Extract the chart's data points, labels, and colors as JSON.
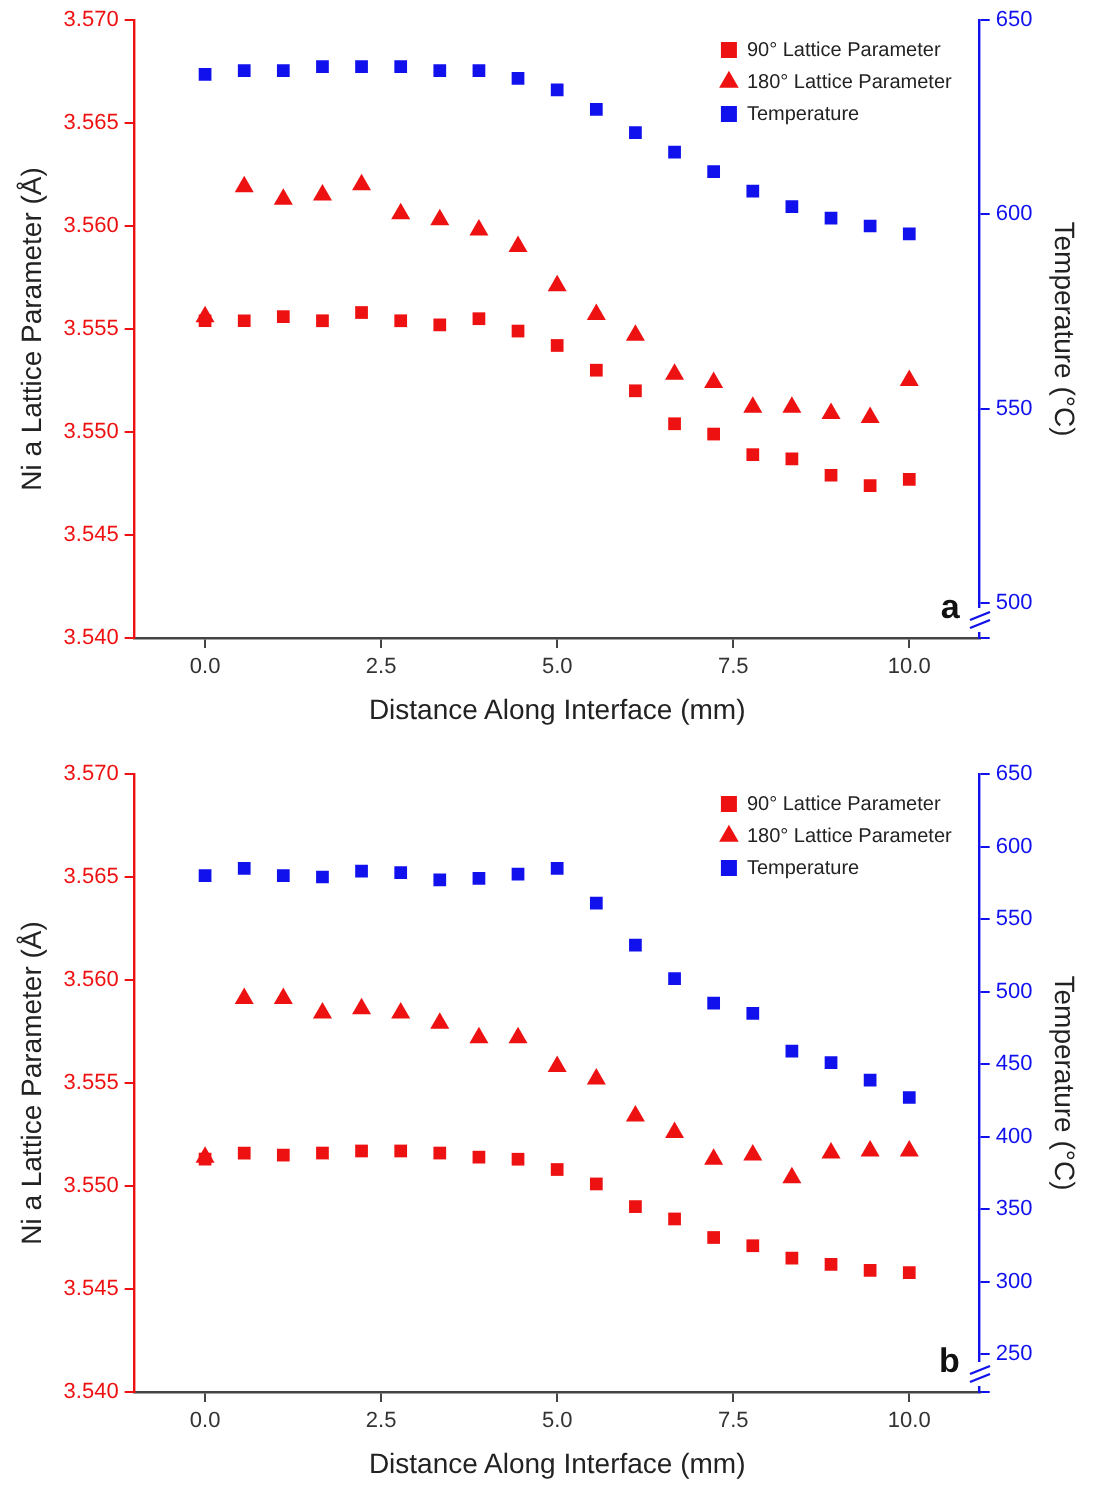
{
  "chart_data": [
    {
      "type": "scatter",
      "xlabel": "Distance Along Interface (mm)",
      "ylabel": "Ni a Lattice Parameter (Å)",
      "y2label": "Temperature (°C)",
      "annotations": [
        "a"
      ],
      "x": [
        0,
        0.556,
        1.111,
        1.667,
        2.222,
        2.778,
        3.333,
        3.889,
        4.444,
        5,
        5.556,
        6.111,
        6.667,
        7.222,
        7.778,
        8.333,
        8.889,
        9.444,
        10
      ],
      "xlim": [
        -1,
        11
      ],
      "xticks": [
        {
          "value": 0,
          "label": "0.0"
        },
        {
          "value": 2.5,
          "label": "2.5"
        },
        {
          "value": 5,
          "label": "5.0"
        },
        {
          "value": 7.5,
          "label": "7.5"
        },
        {
          "value": 10,
          "label": "10.0"
        }
      ],
      "ylim": [
        3.54,
        3.57
      ],
      "yticks": [
        {
          "value": 3.54,
          "label": "3.540"
        },
        {
          "value": 3.545,
          "label": "3.545"
        },
        {
          "value": 3.55,
          "label": "3.550"
        },
        {
          "value": 3.555,
          "label": "3.555"
        },
        {
          "value": 3.56,
          "label": "3.560"
        },
        {
          "value": 3.565,
          "label": "3.565"
        },
        {
          "value": 3.57,
          "label": "3.570"
        }
      ],
      "y2lim": [
        491,
        650
      ],
      "y2ticks": [
        {
          "value": 491,
          "label": null
        },
        500,
        550,
        600,
        650
      ],
      "grid": false,
      "legend": "top right",
      "series": [
        {
          "name": "90° Lattice Parameter",
          "color": "#ee1111",
          "marker": "square",
          "values": [
            3.5554,
            3.5554,
            3.5556,
            3.5554,
            3.5558,
            3.5554,
            3.5552,
            3.5555,
            3.5549,
            3.5542,
            3.553,
            3.552,
            3.5504,
            3.5499,
            3.5489,
            3.5487,
            3.5479,
            3.5474,
            3.5477
          ]
        },
        {
          "name": "180° Lattice Parameter",
          "color": "#ee1111",
          "marker": "triangle",
          "values": [
            3.5556,
            3.5619,
            3.5613,
            3.5615,
            3.562,
            3.5606,
            3.5603,
            3.5598,
            3.559,
            3.5571,
            3.5557,
            3.5547,
            3.5528,
            3.5524,
            3.5512,
            3.5512,
            3.5509,
            3.5507,
            3.5525
          ]
        },
        {
          "name": "Temperature",
          "color": "#1111ee",
          "marker": "square",
          "axis": "y2",
          "values": [
            636,
            637,
            637,
            638,
            638,
            638,
            637,
            637,
            635,
            632,
            627,
            621,
            616,
            611,
            606,
            602,
            599,
            597,
            595
          ]
        }
      ]
    },
    {
      "type": "scatter",
      "xlabel": "Distance Along Interface (mm)",
      "ylabel": "Ni a Lattice Parameter (Å)",
      "y2label": "Temperature (°C)",
      "annotations": [
        "b"
      ],
      "x": [
        0,
        0.556,
        1.111,
        1.667,
        2.222,
        2.778,
        3.333,
        3.889,
        4.444,
        5,
        5.556,
        6.111,
        6.667,
        7.222,
        7.778,
        8.333,
        8.889,
        9.444,
        10
      ],
      "xlim": [
        -1,
        11
      ],
      "xticks": [
        {
          "value": 0,
          "label": "0.0"
        },
        {
          "value": 2.5,
          "label": "2.5"
        },
        {
          "value": 5,
          "label": "5.0"
        },
        {
          "value": 7.5,
          "label": "7.5"
        },
        {
          "value": 10,
          "label": "10.0"
        }
      ],
      "ylim": [
        3.54,
        3.57
      ],
      "yticks": [
        {
          "value": 3.54,
          "label": "3.540"
        },
        {
          "value": 3.545,
          "label": "3.545"
        },
        {
          "value": 3.55,
          "label": "3.550"
        },
        {
          "value": 3.555,
          "label": "3.555"
        },
        {
          "value": 3.56,
          "label": "3.560"
        },
        {
          "value": 3.565,
          "label": "3.565"
        },
        {
          "value": 3.57,
          "label": "3.570"
        }
      ],
      "y2lim": [
        224,
        650
      ],
      "y2ticks": [
        {
          "value": 224,
          "label": null
        },
        250,
        300,
        350,
        400,
        450,
        500,
        550,
        600,
        650
      ],
      "grid": false,
      "legend": "top right",
      "series": [
        {
          "name": "90° Lattice Parameter",
          "color": "#ee1111",
          "marker": "square",
          "values": [
            3.5513,
            3.5516,
            3.5515,
            3.5516,
            3.5517,
            3.5517,
            3.5516,
            3.5514,
            3.5513,
            3.5508,
            3.5501,
            3.549,
            3.5484,
            3.5475,
            3.5471,
            3.5465,
            3.5462,
            3.5459,
            3.5458
          ]
        },
        {
          "name": "180° Lattice Parameter",
          "color": "#ee1111",
          "marker": "triangle",
          "values": [
            3.5514,
            3.5591,
            3.5591,
            3.5584,
            3.5586,
            3.5584,
            3.5579,
            3.5572,
            3.5572,
            3.5558,
            3.5552,
            3.5534,
            3.5526,
            3.5513,
            3.5515,
            3.5504,
            3.5516,
            3.5517,
            3.5517
          ]
        },
        {
          "name": "Temperature",
          "color": "#1111ee",
          "marker": "square",
          "axis": "y2",
          "values": [
            580,
            585,
            580,
            579,
            583,
            582,
            577,
            578,
            581,
            585,
            561,
            532,
            509,
            492,
            485,
            459,
            451,
            439,
            427
          ]
        }
      ]
    }
  ]
}
